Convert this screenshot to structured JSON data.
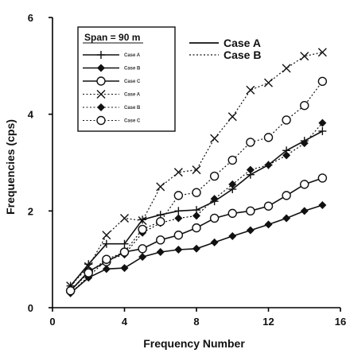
{
  "chart_data": {
    "type": "line",
    "xlabel": "Frequency Number",
    "ylabel": "Frequencies (cps)",
    "xlim": [
      0,
      16
    ],
    "ylim": [
      0,
      6
    ],
    "xticks": [
      "0",
      "4",
      "8",
      "12",
      "16"
    ],
    "yticks": [
      "0",
      "2",
      "4",
      "6"
    ],
    "grid": false,
    "legend_placement": "top-left",
    "annotation": "Span = 90 m",
    "case_legend": [
      {
        "label": "Case A",
        "style": "solid"
      },
      {
        "label": "Case B",
        "style": "dotted"
      }
    ],
    "x": [
      1,
      2,
      3,
      4,
      5,
      6,
      7,
      8,
      9,
      10,
      11,
      12,
      13,
      14,
      15
    ],
    "series": [
      {
        "name": "Case A",
        "case": "A",
        "marker": "plus",
        "values": [
          0.45,
          0.9,
          1.32,
          1.32,
          1.82,
          1.92,
          2.0,
          2.02,
          2.2,
          2.45,
          2.75,
          2.95,
          3.25,
          3.45,
          3.65
        ]
      },
      {
        "name": "Case B",
        "case": "A",
        "marker": "diamond",
        "values": [
          0.3,
          0.62,
          0.8,
          0.82,
          1.05,
          1.15,
          1.2,
          1.22,
          1.35,
          1.48,
          1.6,
          1.72,
          1.85,
          2.0,
          2.12
        ]
      },
      {
        "name": "Case C",
        "case": "A",
        "marker": "circle",
        "values": [
          0.35,
          0.75,
          0.95,
          1.15,
          1.22,
          1.4,
          1.5,
          1.65,
          1.85,
          1.95,
          2.0,
          2.1,
          2.32,
          2.55,
          2.68
        ]
      },
      {
        "name": "Case A",
        "case": "B",
        "marker": "x",
        "values": [
          0.45,
          0.85,
          1.5,
          1.85,
          1.8,
          2.5,
          2.8,
          2.85,
          3.5,
          3.95,
          4.5,
          4.65,
          4.95,
          5.2,
          5.28
        ]
      },
      {
        "name": "Case B",
        "case": "B",
        "marker": "diamond",
        "values": [
          0.3,
          0.65,
          0.98,
          1.1,
          1.55,
          1.75,
          1.85,
          1.9,
          2.25,
          2.55,
          2.85,
          2.95,
          3.15,
          3.4,
          3.82
        ]
      },
      {
        "name": "Case C",
        "case": "B",
        "marker": "circle",
        "values": [
          0.35,
          0.72,
          1.0,
          1.15,
          1.62,
          1.78,
          2.32,
          2.38,
          2.72,
          3.05,
          3.42,
          3.52,
          3.88,
          4.18,
          4.68
        ]
      }
    ]
  }
}
